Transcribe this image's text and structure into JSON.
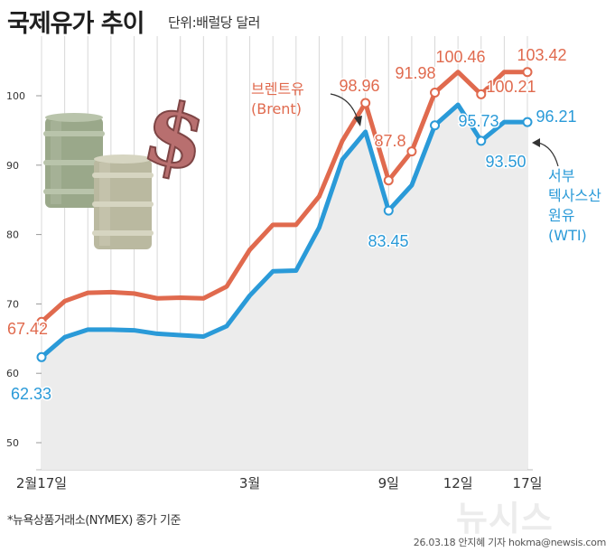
{
  "header": {
    "title": "국제유가 추이",
    "unit": "단위:배럴당 달러"
  },
  "footer": {
    "note": "*뉴욕상품거래소(NYMEX) 종가 기준",
    "credit": "26.03.18 안지혜 기자 hokma@newsis.com",
    "watermark": "뉴시스"
  },
  "colors": {
    "brent": "#e06a4e",
    "wti": "#2a9ad8",
    "area": "#ececec",
    "grid": "#d8d8d8",
    "text": "#333333"
  },
  "chart_data": {
    "type": "line",
    "title": "국제유가 추이",
    "ylabel": "단위:배럴당 달러",
    "ylim": [
      50,
      105
    ],
    "yticks": [
      50,
      60,
      70,
      80,
      90,
      100
    ],
    "x": [
      0,
      1,
      2,
      3,
      4,
      5,
      6,
      7,
      8,
      9,
      10,
      11,
      12,
      13,
      14,
      15,
      16,
      17,
      18,
      19,
      20,
      21
    ],
    "xticks": [
      {
        "x": 0,
        "label": "2월17일"
      },
      {
        "x": 9,
        "label": "3월"
      },
      {
        "x": 15,
        "label": "9일"
      },
      {
        "x": 18,
        "label": "12일"
      },
      {
        "x": 21,
        "label": "17일"
      }
    ],
    "series": [
      {
        "name": "브렌트유 (Brent)",
        "label_lines": [
          "브렌트유",
          "(Brent)"
        ],
        "values": [
          67.42,
          70.4,
          71.6,
          71.7,
          71.5,
          70.8,
          70.9,
          70.8,
          72.5,
          77.8,
          81.4,
          81.4,
          85.5,
          93.5,
          98.96,
          87.8,
          91.98,
          100.46,
          103.42,
          100.21,
          103.42,
          103.42
        ],
        "annotations": [
          {
            "i": 0,
            "text": "67.42"
          },
          {
            "i": 14,
            "text": "98.96"
          },
          {
            "i": 15,
            "text": "87.8"
          },
          {
            "i": 16,
            "text": "91.98"
          },
          {
            "i": 17,
            "text": "100.46"
          },
          {
            "i": 19,
            "text": "100.21"
          },
          {
            "i": 21,
            "text": "103.42"
          }
        ]
      },
      {
        "name": "서부텍사스산원유 (WTI)",
        "label_lines": [
          "서부",
          "텍사스산",
          "원유",
          "(WTI)"
        ],
        "values": [
          62.33,
          65.2,
          66.3,
          66.3,
          66.2,
          65.7,
          65.5,
          65.3,
          66.8,
          71.2,
          74.7,
          74.8,
          81.0,
          90.8,
          94.8,
          83.45,
          87.1,
          95.73,
          98.7,
          93.5,
          96.21,
          96.21
        ],
        "annotations": [
          {
            "i": 0,
            "text": "62.33"
          },
          {
            "i": 15,
            "text": "83.45"
          },
          {
            "i": 17,
            "text": "95.73"
          },
          {
            "i": 19,
            "text": "93.50"
          },
          {
            "i": 21,
            "text": "96.21"
          }
        ]
      }
    ]
  }
}
